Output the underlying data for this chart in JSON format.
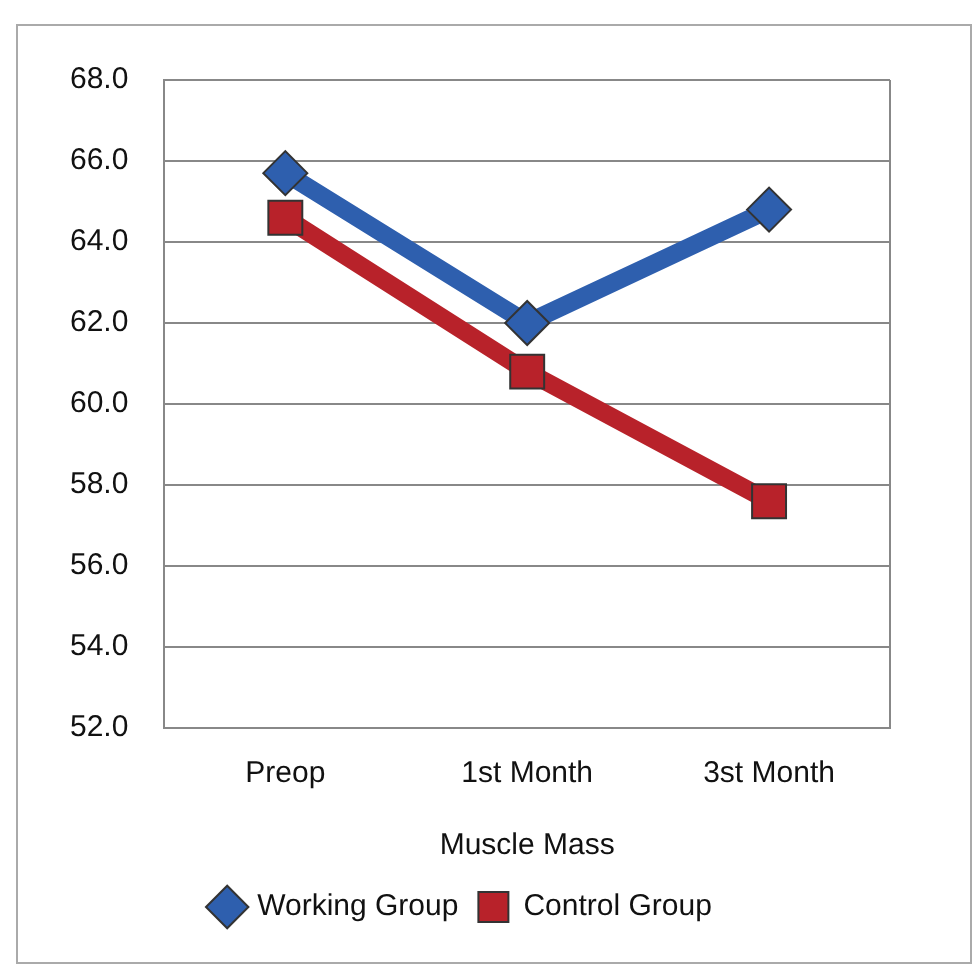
{
  "chart_data": {
    "type": "line",
    "xlabel": "Muscle Mass",
    "categories": [
      "Preop",
      "1st Month",
      "3st Month"
    ],
    "series": [
      {
        "name": "Working Group",
        "color": "#2e5fae",
        "marker": "diamond",
        "values": [
          65.7,
          62.0,
          64.8
        ]
      },
      {
        "name": "Control Group",
        "color": "#b8222a",
        "marker": "square",
        "values": [
          64.6,
          60.8,
          57.6
        ]
      }
    ],
    "ylim": [
      52,
      68
    ],
    "yticks": [
      {
        "value": 52,
        "label": "52.0"
      },
      {
        "value": 54,
        "label": "54.0"
      },
      {
        "value": 56,
        "label": "56.0"
      },
      {
        "value": 58,
        "label": "58.0"
      },
      {
        "value": 60,
        "label": "60.0"
      },
      {
        "value": 62,
        "label": "62.0"
      },
      {
        "value": 64,
        "label": "64.0"
      },
      {
        "value": 66,
        "label": "66.0"
      },
      {
        "value": 68,
        "label": "68.0"
      }
    ],
    "grid": "y",
    "legend": "bottom"
  }
}
